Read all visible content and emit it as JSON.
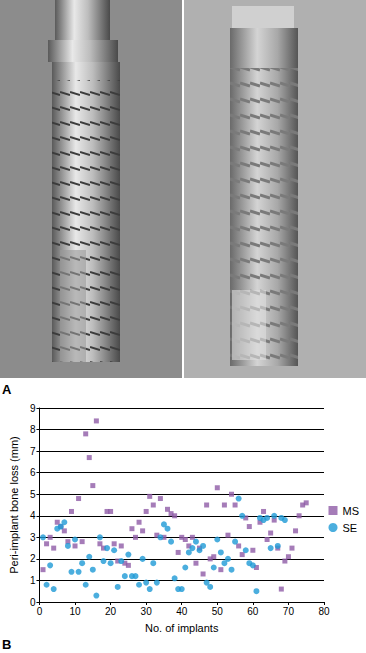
{
  "panel_labels": [
    "A",
    "B"
  ],
  "chart_data": {
    "type": "scatter",
    "xlabel": "No. of implants",
    "ylabel": "Peri-implant bone loss (mm)",
    "xlim": [
      0,
      80
    ],
    "xticks": [
      0,
      10,
      20,
      30,
      40,
      50,
      60,
      70,
      80
    ],
    "ylim": [
      0,
      9
    ],
    "yticks": [
      0,
      1,
      2,
      3,
      4,
      5,
      6,
      7,
      8,
      9
    ],
    "grid": true,
    "legend": "right",
    "series": [
      {
        "name": "MS",
        "color": "#8e5ba6",
        "marker": "square",
        "x": [
          1,
          2,
          3,
          4,
          5,
          6,
          7,
          8,
          9,
          10,
          11,
          12,
          13,
          14,
          15,
          16,
          17,
          18,
          19,
          20,
          21,
          22,
          23,
          24,
          25,
          26,
          27,
          28,
          29,
          30,
          31,
          32,
          33,
          34,
          35,
          36,
          37,
          38,
          39,
          40,
          41,
          42,
          43,
          44,
          45,
          46,
          47,
          48,
          49,
          50,
          51,
          52,
          53,
          54,
          55,
          56,
          57,
          58,
          59,
          60,
          61,
          62,
          63,
          64,
          65,
          66,
          67,
          68,
          69,
          70,
          71,
          72,
          73,
          74,
          75
        ],
        "values": [
          1.5,
          2.7,
          3.0,
          2.5,
          3.7,
          3.5,
          3.3,
          2.8,
          4.2,
          2.6,
          4.8,
          2.8,
          7.8,
          6.7,
          5.4,
          8.4,
          2.7,
          2.5,
          4.2,
          4.2,
          2.7,
          1.9,
          2.6,
          1.8,
          1.7,
          3.4,
          3.0,
          3.7,
          3.3,
          4.2,
          4.9,
          4.5,
          3.1,
          4.8,
          3.0,
          4.3,
          4.1,
          4.0,
          2.3,
          3.0,
          2.9,
          2.6,
          3.0,
          1.8,
          2.5,
          1.3,
          4.5,
          2.0,
          2.1,
          5.3,
          1.5,
          4.5,
          3.1,
          5.0,
          4.5,
          2.6,
          2.2,
          3.9,
          3.5,
          2.4,
          1.6,
          3.7,
          4.2,
          2.9,
          3.2,
          3.8,
          2.5,
          0.6,
          1.9,
          2.1,
          2.5,
          3.3,
          4.0,
          4.5,
          4.6
        ]
      },
      {
        "name": "SE",
        "color": "#1e9ad6",
        "marker": "circle",
        "x": [
          1,
          2,
          3,
          4,
          5,
          6,
          7,
          8,
          9,
          10,
          11,
          12,
          13,
          14,
          15,
          16,
          17,
          18,
          19,
          20,
          21,
          22,
          23,
          24,
          25,
          26,
          27,
          28,
          29,
          30,
          31,
          32,
          33,
          34,
          35,
          36,
          37,
          38,
          39,
          40,
          41,
          42,
          43,
          44,
          45,
          46,
          47,
          48,
          49,
          50,
          51,
          52,
          53,
          54,
          55,
          56,
          57,
          58,
          59,
          60,
          61,
          62,
          63,
          64,
          65,
          66,
          67,
          68,
          69
        ],
        "values": [
          3.0,
          0.8,
          1.7,
          0.6,
          3.4,
          3.5,
          3.7,
          2.6,
          1.4,
          2.9,
          1.4,
          1.8,
          0.8,
          2.1,
          1.5,
          0.3,
          3.0,
          1.9,
          2.5,
          1.8,
          2.4,
          0.7,
          1.9,
          1.2,
          2.2,
          1.2,
          1.2,
          0.8,
          2.0,
          0.9,
          0.6,
          1.8,
          0.9,
          3.0,
          3.6,
          3.4,
          2.8,
          1.1,
          0.6,
          0.6,
          1.6,
          2.3,
          2.5,
          2.8,
          2.4,
          2.6,
          0.9,
          0.7,
          1.6,
          2.9,
          2.3,
          1.8,
          2.0,
          1.5,
          2.8,
          4.8,
          4.0,
          2.4,
          1.8,
          1.7,
          0.5,
          3.9,
          3.8,
          3.9,
          2.5,
          4.0,
          2.6,
          3.9,
          3.8
        ]
      }
    ]
  }
}
